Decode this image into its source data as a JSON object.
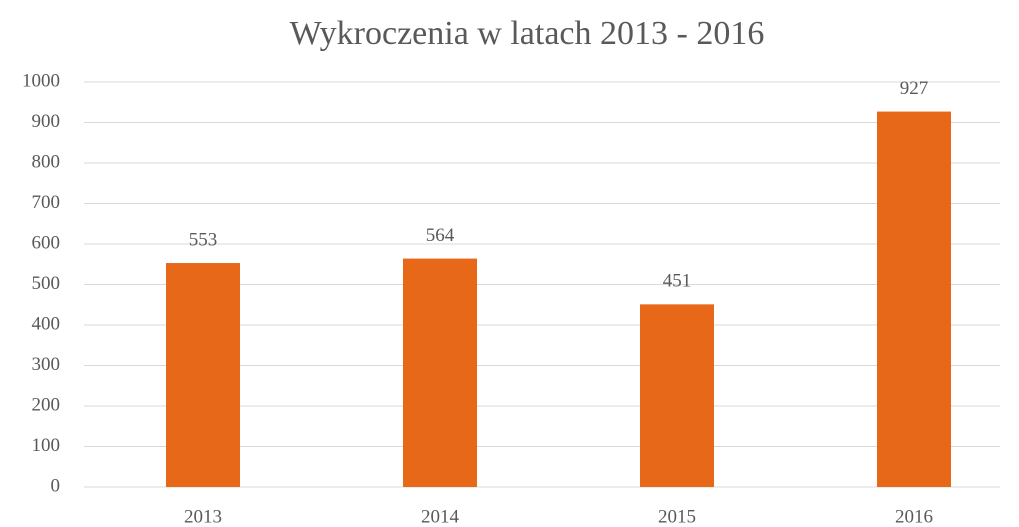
{
  "chart_data": {
    "type": "bar",
    "title": "Wykroczenia w latach 2013 - 2016",
    "categories": [
      "2013",
      "2014",
      "2015",
      "2016"
    ],
    "values": [
      553,
      564,
      451,
      927
    ],
    "color": "#e8681a",
    "ylim": [
      0,
      1000
    ],
    "yticks": [
      0,
      100,
      200,
      300,
      400,
      500,
      600,
      700,
      800,
      900,
      1000
    ],
    "grid": true
  }
}
